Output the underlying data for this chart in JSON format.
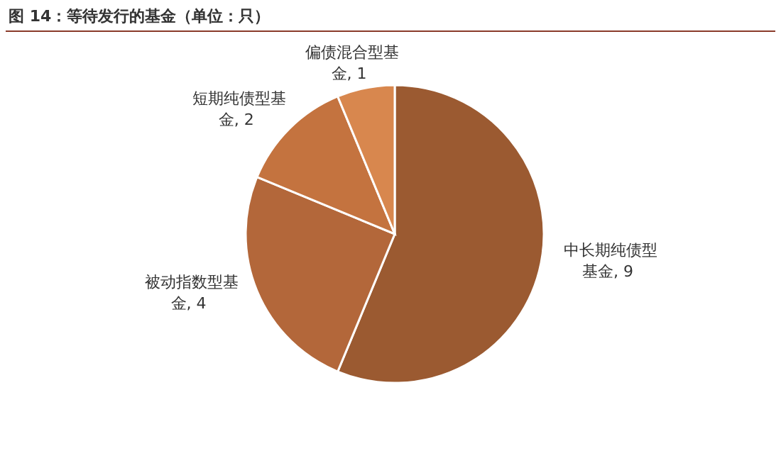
{
  "chart_data": {
    "type": "pie",
    "title": "图 14：等待发行的基金（单位：只）",
    "categories": [
      "中长期纯债型基金",
      "被动指数型基金",
      "短期纯债型基金",
      "偏债混合型基金"
    ],
    "values": [
      9,
      4,
      2,
      1
    ],
    "colors": [
      "#9b5a31",
      "#b3673a",
      "#c4733f",
      "#d8874e"
    ],
    "value_labels": [
      ", 9",
      ", 4",
      ", 2",
      ", 1"
    ]
  }
}
